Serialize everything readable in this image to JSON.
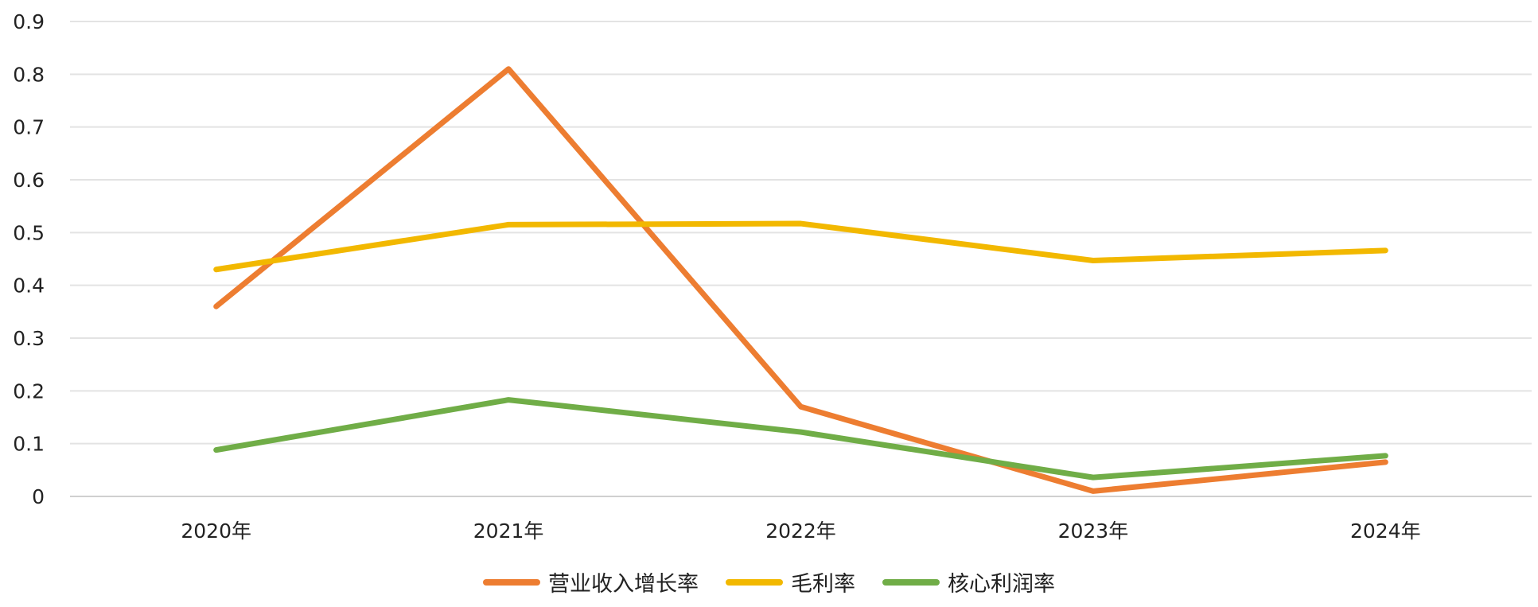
{
  "chart_data": {
    "type": "line",
    "title": "",
    "xlabel": "",
    "ylabel": "",
    "categories": [
      "2020年",
      "2021年",
      "2022年",
      "2023年",
      "2024年"
    ],
    "y_ticks": [
      "0",
      "0.1",
      "0.2",
      "0.3",
      "0.4",
      "0.5",
      "0.6",
      "0.7",
      "0.8",
      "0.9"
    ],
    "ylim": [
      0,
      0.9
    ],
    "grid": "horizontal",
    "legend": "bottom",
    "series": [
      {
        "name": "营业收入增长率",
        "color": "#ED7D31",
        "values": [
          0.36,
          0.81,
          0.17,
          0.01,
          0.065
        ]
      },
      {
        "name": "毛利率",
        "color": "#F2B800",
        "values": [
          0.43,
          0.515,
          0.517,
          0.447,
          0.466
        ]
      },
      {
        "name": "核心利润率",
        "color": "#70AD47",
        "values": [
          0.088,
          0.183,
          0.122,
          0.036,
          0.077
        ]
      }
    ]
  }
}
